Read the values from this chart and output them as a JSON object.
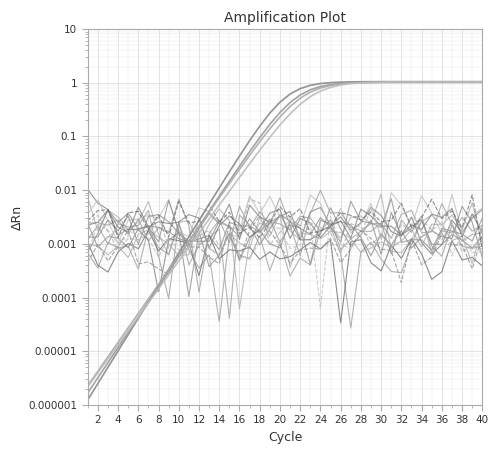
{
  "title": "Amplification Plot",
  "xlabel": "Cycle",
  "ylabel": "ΔRn",
  "xlim": [
    1,
    40
  ],
  "ylim_log": [
    1e-06,
    10
  ],
  "xticks": [
    2,
    4,
    6,
    8,
    10,
    12,
    14,
    16,
    18,
    20,
    22,
    24,
    26,
    28,
    30,
    32,
    34,
    36,
    38,
    40
  ],
  "ytick_labels": [
    "0.000001",
    "0.00001",
    "0.0001",
    "0.001",
    "0.01",
    "0.1",
    "1",
    "10"
  ],
  "yticks": [
    1e-06,
    1e-05,
    0.0001,
    0.001,
    0.01,
    0.1,
    1,
    10
  ],
  "background_color": "#ffffff",
  "grid_color": "#d8d8d8",
  "num_cycles": 40,
  "sigmoid_midpoints": [
    20.5,
    21.5,
    22.0,
    22.8
  ],
  "sigmoid_steepness": [
    0.7,
    0.65,
    0.62,
    0.6
  ],
  "sigmoid_max": [
    1.05,
    1.02,
    1.03,
    1.04
  ],
  "sig_colors": [
    "#888888",
    "#999999",
    "#aaaaaa",
    "#bbbbbb"
  ],
  "noise_colors": [
    "#999999",
    "#aaaaaa",
    "#888888",
    "#777777",
    "#bbbbbb",
    "#888888",
    "#999999",
    "#666666",
    "#aaaaaa",
    "#888888",
    "#777777",
    "#999999",
    "#aaaaaa",
    "#888888",
    "#bbbbbb",
    "#666666"
  ],
  "noise_linestyles": [
    "-",
    "-",
    "-",
    "-",
    "-",
    "-",
    "-",
    "-",
    "-",
    "-",
    "-",
    "-",
    "--",
    "--",
    "--",
    "--"
  ]
}
